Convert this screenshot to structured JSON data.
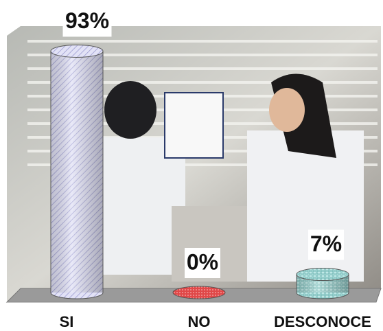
{
  "chart_data": {
    "type": "bar",
    "categories": [
      "SI",
      "NO",
      "DESCONOCE"
    ],
    "values": [
      93,
      0,
      7
    ],
    "value_labels": [
      "93%",
      "0%",
      "7%"
    ],
    "colors": [
      "#d8d8f0",
      "#e04040",
      "#a8e0e0"
    ]
  }
}
